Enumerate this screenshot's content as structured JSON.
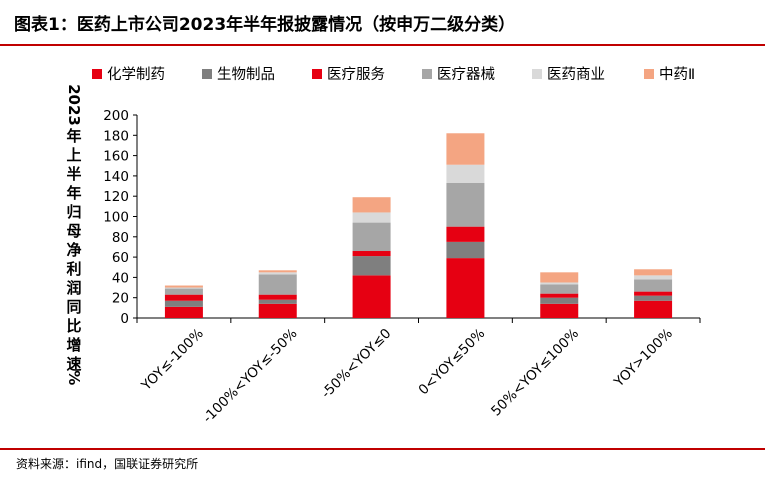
{
  "figure_title": "图表1：医药上市公司2023年半年报披露情况（按申万二级分类）",
  "source_note": "资料来源：ifind，国联证券研究所",
  "chart_data": {
    "type": "bar",
    "stacked": true,
    "title": "",
    "xlabel": "",
    "ylabel": "2023年上半年归母净利润同比增速%",
    "ylim": [
      0,
      200
    ],
    "yticks": [
      0,
      20,
      40,
      60,
      80,
      100,
      120,
      140,
      160,
      180,
      200
    ],
    "grid": false,
    "legend_position": "top",
    "categories": [
      "YOY≤-100%",
      "-100%<YOY≤-50%",
      "-50%<YOY≤0",
      "0<YOY≤50%",
      "50%<YOY≤100%",
      "YOY>100%"
    ],
    "series": [
      {
        "name": "化学制药",
        "color": "#e60012",
        "values": [
          11,
          14,
          42,
          59,
          14,
          17
        ]
      },
      {
        "name": "生物制品",
        "color": "#7f7f7f",
        "values": [
          6,
          4,
          19,
          16,
          6,
          5
        ]
      },
      {
        "name": "医疗服务",
        "color": "#e60012",
        "values": [
          6,
          5,
          5,
          15,
          4,
          4
        ]
      },
      {
        "name": "医疗器械",
        "color": "#a6a6a6",
        "values": [
          6,
          20,
          28,
          43,
          9,
          12
        ]
      },
      {
        "name": "医药商业",
        "color": "#d9d9d9",
        "values": [
          1,
          2,
          10,
          18,
          2,
          4
        ]
      },
      {
        "name": "中药Ⅱ",
        "color": "#f4a582",
        "values": [
          2,
          2,
          15,
          31,
          10,
          6
        ]
      }
    ]
  }
}
